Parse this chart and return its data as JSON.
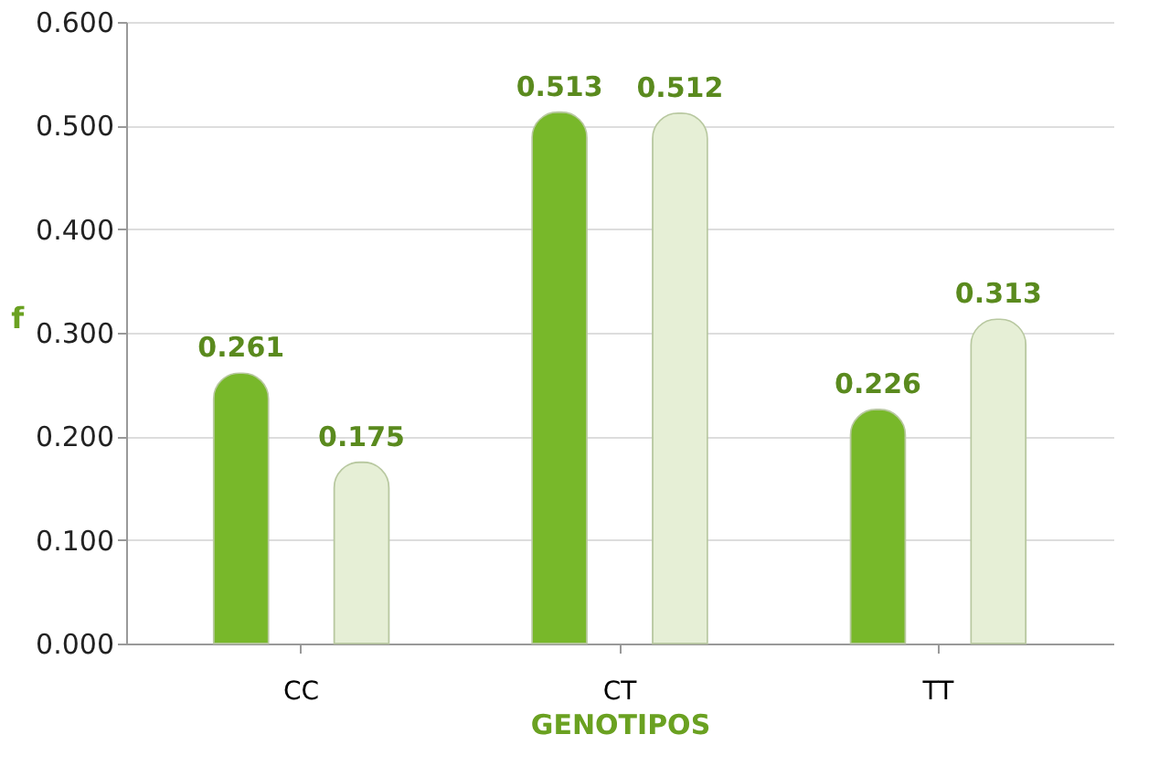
{
  "chart_data": {
    "type": "bar",
    "xlabel": "GENOTIPOS",
    "ylabel": "f",
    "categories": [
      "CC",
      "CT",
      "TT"
    ],
    "series": [
      {
        "color": "#78b82a",
        "values": [
          0.261,
          0.513,
          0.226
        ]
      },
      {
        "color": "#e6efd6",
        "values": [
          0.175,
          0.512,
          0.313
        ]
      }
    ],
    "ylim": [
      0,
      0.6
    ],
    "yticks": [
      {
        "value": 0,
        "label": "0.000"
      },
      {
        "value": 0.1,
        "label": "0.100"
      },
      {
        "value": 0.2,
        "label": "0.200"
      },
      {
        "value": 0.3,
        "label": "0.300"
      },
      {
        "value": 0.4,
        "label": "0.400"
      },
      {
        "value": 0.5,
        "label": "0.500"
      },
      {
        "value": 0.6,
        "label": "0.600"
      }
    ],
    "grid": "y",
    "data_labels": true
  }
}
